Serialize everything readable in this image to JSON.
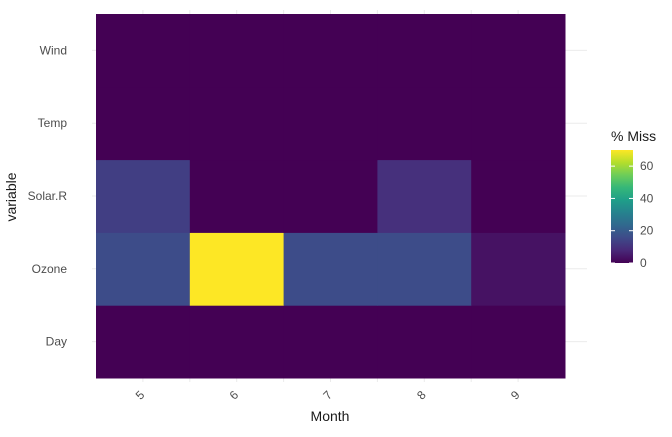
{
  "chart_data": {
    "type": "heatmap",
    "title": "",
    "xlabel": "Month",
    "ylabel": "variable",
    "x_categories": [
      "5",
      "6",
      "7",
      "8",
      "9"
    ],
    "y_categories": [
      "Day",
      "Ozone",
      "Solar.R",
      "Temp",
      "Wind"
    ],
    "values": [
      [
        0,
        0,
        0,
        0,
        0
      ],
      [
        16.1,
        70.0,
        16.1,
        16.1,
        3.3
      ],
      [
        12.9,
        0,
        0,
        9.7,
        0
      ],
      [
        0,
        0,
        0,
        0,
        0
      ],
      [
        0,
        0,
        0,
        0,
        0
      ]
    ],
    "legend": {
      "title": "% Miss",
      "ticks": [
        0,
        20,
        40,
        60
      ],
      "range": [
        0,
        70
      ],
      "placement": "right"
    },
    "colorscale": "viridis",
    "colors": [
      "#440154",
      "#482878",
      "#3E4A89",
      "#31688E",
      "#26828E",
      "#1F9E89",
      "#35B779",
      "#6DCD59",
      "#B4DE2C",
      "#FDE725"
    ],
    "grid": true
  }
}
